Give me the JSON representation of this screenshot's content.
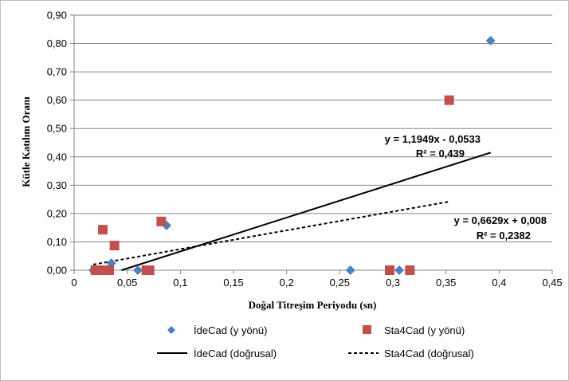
{
  "chart_data": {
    "type": "scatter",
    "title": "",
    "xlabel": "Doğal Titreşim  Periyodu (sn)",
    "ylabel": "Kütle Katılım Oranı",
    "xlim": [
      0,
      0.45
    ],
    "ylim": [
      0,
      0.9
    ],
    "x_ticks": [
      "0",
      "0,05",
      "0,1",
      "0,15",
      "0,2",
      "0,25",
      "0,3",
      "0,35",
      "0,4",
      "0,45"
    ],
    "y_ticks": [
      "0,00",
      "0,10",
      "0,20",
      "0,30",
      "0,40",
      "0,50",
      "0,60",
      "0,70",
      "0,80",
      "0,90"
    ],
    "grid": "horizontal",
    "legend_position": "bottom",
    "series": [
      {
        "name": "İdeCad (y yönü)",
        "marker": "diamond",
        "color": "#4F81BD",
        "points": [
          {
            "x": 0.018,
            "y": 0.0
          },
          {
            "x": 0.035,
            "y": 0.025
          },
          {
            "x": 0.06,
            "y": 0.0
          },
          {
            "x": 0.087,
            "y": 0.158
          },
          {
            "x": 0.26,
            "y": 0.0
          },
          {
            "x": 0.306,
            "y": 0.0
          },
          {
            "x": 0.392,
            "y": 0.81
          }
        ]
      },
      {
        "name": "Sta4Cad (y yönü)",
        "marker": "square",
        "color": "#C0504D",
        "points": [
          {
            "x": 0.02,
            "y": 0.0
          },
          {
            "x": 0.027,
            "y": 0.143
          },
          {
            "x": 0.028,
            "y": 0.0
          },
          {
            "x": 0.033,
            "y": 0.0
          },
          {
            "x": 0.038,
            "y": 0.087
          },
          {
            "x": 0.068,
            "y": 0.0
          },
          {
            "x": 0.071,
            "y": 0.0
          },
          {
            "x": 0.082,
            "y": 0.172
          },
          {
            "x": 0.297,
            "y": 0.0
          },
          {
            "x": 0.316,
            "y": 0.0
          },
          {
            "x": 0.353,
            "y": 0.6
          }
        ]
      }
    ],
    "trendlines": [
      {
        "name": "İdeCad (doğrusal)",
        "style": "solid",
        "color": "#000000",
        "slope": 1.1949,
        "intercept": -0.0533,
        "x_range": [
          0.0446,
          0.392
        ],
        "equation": "y = 1,1949x - 0,0533",
        "r2": "R² = 0,439"
      },
      {
        "name": "Sta4Cad (doğrusal)",
        "style": "dashed",
        "color": "#000000",
        "slope": 0.6629,
        "intercept": 0.008,
        "x_range": [
          0.018,
          0.353
        ],
        "equation": "y = 0,6629x + 0,008",
        "r2": "R² = 0,2382"
      }
    ]
  }
}
